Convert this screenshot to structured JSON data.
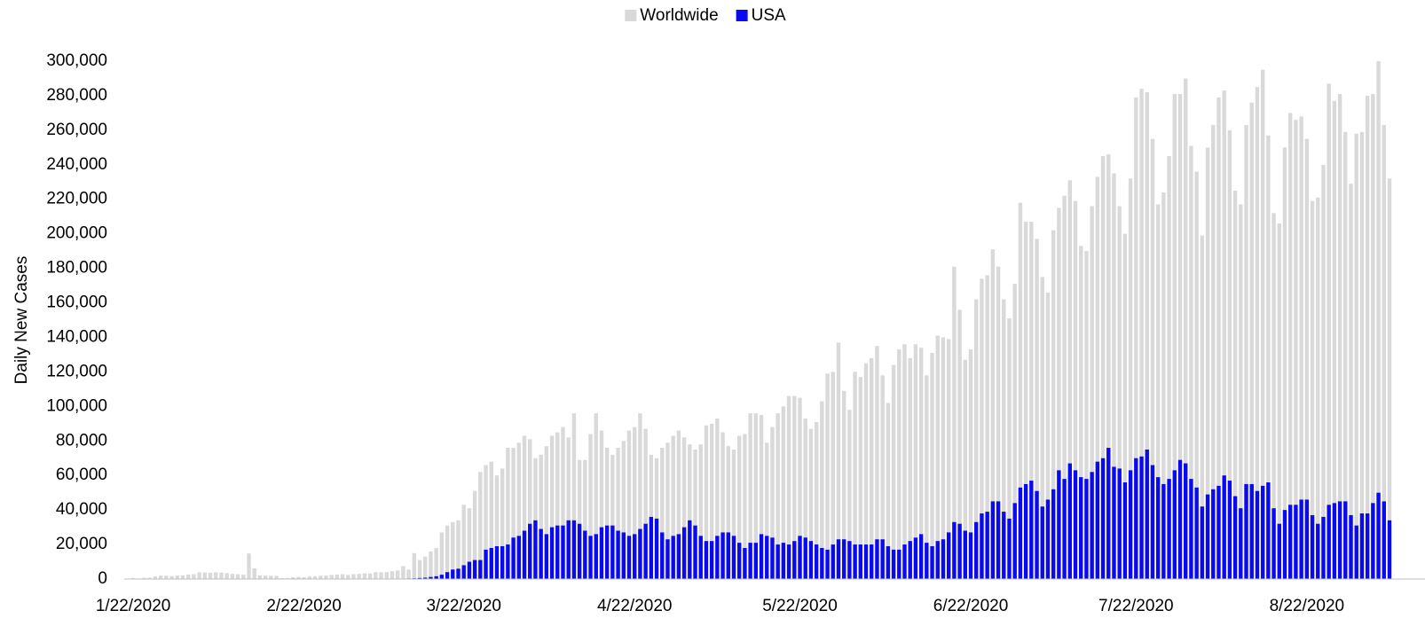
{
  "chart_data": {
    "type": "bar",
    "y_label": "Daily New Cases",
    "categories": [
      "1/22/2020",
      null,
      null,
      null,
      null,
      null,
      null,
      null,
      null,
      null,
      null,
      null,
      null,
      null,
      null,
      null,
      null,
      null,
      null,
      null,
      null,
      null,
      null,
      null,
      null,
      null,
      null,
      null,
      null,
      null,
      null,
      "2/22/2020",
      null,
      null,
      null,
      null,
      null,
      null,
      null,
      null,
      null,
      null,
      null,
      null,
      null,
      null,
      null,
      null,
      null,
      null,
      null,
      null,
      null,
      null,
      null,
      null,
      null,
      null,
      null,
      null,
      "3/22/2020",
      null,
      null,
      null,
      null,
      null,
      null,
      null,
      null,
      null,
      null,
      null,
      null,
      null,
      null,
      null,
      null,
      null,
      null,
      null,
      null,
      null,
      null,
      null,
      null,
      null,
      null,
      null,
      null,
      null,
      null,
      "4/22/2020",
      null,
      null,
      null,
      null,
      null,
      null,
      null,
      null,
      null,
      null,
      null,
      null,
      null,
      null,
      null,
      null,
      null,
      null,
      null,
      null,
      null,
      null,
      null,
      null,
      null,
      null,
      null,
      null,
      null,
      "5/22/2020",
      null,
      null,
      null,
      null,
      null,
      null,
      null,
      null,
      null,
      null,
      null,
      null,
      null,
      null,
      null,
      null,
      null,
      null,
      null,
      null,
      null,
      null,
      null,
      null,
      null,
      null,
      null,
      null,
      null,
      null,
      "6/22/2020",
      null,
      null,
      null,
      null,
      null,
      null,
      null,
      null,
      null,
      null,
      null,
      null,
      null,
      null,
      null,
      null,
      null,
      null,
      null,
      null,
      null,
      null,
      null,
      null,
      null,
      null,
      null,
      null,
      null,
      "7/22/2020",
      null,
      null,
      null,
      null,
      null,
      null,
      null,
      null,
      null,
      null,
      null,
      null,
      null,
      null,
      null,
      null,
      null,
      null,
      null,
      null,
      null,
      null,
      null,
      null,
      null,
      null,
      null,
      null,
      null,
      null,
      "8/22/2020",
      null,
      null,
      null,
      null,
      null,
      null,
      null,
      null,
      null,
      null,
      null,
      null,
      null,
      null,
      null
    ],
    "series": [
      {
        "name": "Worldwide",
        "color": "#d9d9d9",
        "values": [
          600,
          100,
          700,
          800,
          1500,
          2000,
          2000,
          1700,
          2000,
          2100,
          2600,
          2800,
          3900,
          3800,
          3700,
          3900,
          3700,
          3400,
          3000,
          2800,
          2600,
          14800,
          6200,
          2100,
          2000,
          1900,
          1800,
          500,
          600,
          1000,
          1200,
          1000,
          1500,
          1600,
          1900,
          2000,
          2400,
          2600,
          2800,
          2400,
          2800,
          3000,
          3300,
          3200,
          4000,
          3900,
          4000,
          4500,
          5000,
          7500,
          5500,
          15000,
          11000,
          13000,
          16000,
          18000,
          27000,
          31000,
          33000,
          34000,
          43000,
          41000,
          51000,
          62000,
          66000,
          68000,
          60000,
          64000,
          76000,
          76000,
          79000,
          83000,
          81000,
          70000,
          72000,
          77000,
          83000,
          85000,
          88000,
          82000,
          96000,
          69000,
          69000,
          84000,
          96000,
          86000,
          76000,
          72000,
          76000,
          80000,
          86000,
          88000,
          96000,
          87000,
          72000,
          70000,
          76000,
          79000,
          83000,
          86000,
          82000,
          78000,
          75000,
          78000,
          89000,
          90000,
          93000,
          85000,
          77000,
          75000,
          83000,
          84000,
          96000,
          96000,
          95000,
          79000,
          88000,
          96000,
          100000,
          106000,
          106000,
          105000,
          93000,
          87000,
          91000,
          103000,
          119000,
          120000,
          137000,
          109000,
          98000,
          120000,
          117000,
          125000,
          128000,
          135000,
          118000,
          102000,
          124000,
          133000,
          136000,
          128000,
          136000,
          134000,
          118000,
          131000,
          141000,
          140000,
          139000,
          181000,
          156000,
          127000,
          133000,
          162000,
          174000,
          176000,
          191000,
          181000,
          162000,
          151000,
          171000,
          218000,
          207000,
          207000,
          197000,
          175000,
          166000,
          202000,
          215000,
          222000,
          231000,
          219000,
          193000,
          190000,
          216000,
          233000,
          245000,
          246000,
          235000,
          216000,
          200000,
          232000,
          279000,
          284000,
          282000,
          255000,
          217000,
          224000,
          245000,
          281000,
          281000,
          290000,
          251000,
          236000,
          199000,
          250000,
          263000,
          279000,
          283000,
          260000,
          225000,
          217000,
          263000,
          276000,
          285000,
          295000,
          257000,
          212000,
          206000,
          250000,
          270000,
          266000,
          268000,
          255000,
          219000,
          221000,
          240000,
          287000,
          277000,
          281000,
          259000,
          229000,
          258000,
          259000,
          280000,
          281000,
          300000,
          263000,
          232000
        ]
      },
      {
        "name": "USA",
        "color": "#0a0af0",
        "values": [
          0,
          0,
          0,
          0,
          0,
          0,
          0,
          0,
          0,
          0,
          0,
          0,
          0,
          0,
          0,
          0,
          0,
          0,
          0,
          0,
          0,
          0,
          0,
          0,
          0,
          0,
          0,
          0,
          0,
          0,
          0,
          0,
          0,
          0,
          0,
          0,
          0,
          0,
          0,
          0,
          0,
          0,
          0,
          0,
          0,
          0,
          0,
          0,
          0,
          0,
          300,
          400,
          600,
          800,
          1200,
          1600,
          2500,
          4000,
          5500,
          6000,
          8000,
          10000,
          11000,
          11000,
          17000,
          18000,
          19000,
          19000,
          20000,
          24000,
          25000,
          28000,
          32000,
          34000,
          29000,
          26000,
          30000,
          31000,
          31000,
          34000,
          34000,
          32000,
          28000,
          25000,
          26000,
          30000,
          31000,
          31000,
          28000,
          27000,
          25000,
          26000,
          29000,
          32000,
          36000,
          35000,
          27000,
          23000,
          25000,
          26000,
          30000,
          34000,
          31000,
          25000,
          22000,
          22000,
          25000,
          27000,
          27000,
          25000,
          21000,
          18000,
          21000,
          21000,
          26000,
          25000,
          24000,
          20000,
          21000,
          20000,
          22000,
          25000,
          24000,
          22000,
          20000,
          18000,
          17000,
          20000,
          23000,
          23000,
          22000,
          20000,
          20000,
          20000,
          20000,
          23000,
          23000,
          19000,
          17000,
          17000,
          20000,
          22000,
          24000,
          26000,
          21000,
          19000,
          22000,
          23000,
          27000,
          33000,
          32000,
          28000,
          27000,
          33000,
          38000,
          39000,
          45000,
          45000,
          39000,
          35000,
          44000,
          53000,
          55000,
          57000,
          51000,
          42000,
          46000,
          52000,
          63000,
          58000,
          67000,
          63000,
          59000,
          58000,
          62000,
          68000,
          70000,
          76000,
          65000,
          64000,
          56000,
          63000,
          70000,
          71000,
          75000,
          66000,
          59000,
          55000,
          58000,
          63000,
          69000,
          67000,
          58000,
          53000,
          42000,
          49000,
          52000,
          54000,
          60000,
          57000,
          48000,
          41000,
          55000,
          55000,
          51000,
          54000,
          56000,
          41000,
          32000,
          40000,
          43000,
          43000,
          46000,
          46000,
          37000,
          32000,
          36000,
          43000,
          44000,
          45000,
          45000,
          37000,
          31000,
          38000,
          38000,
          44000,
          50000,
          45000,
          34000
        ]
      }
    ],
    "ylim": [
      0,
      300000
    ],
    "yticks": [
      0,
      {
        "value": 20000,
        "label": "20,000"
      },
      {
        "value": 40000,
        "label": "40,000"
      },
      {
        "value": 60000,
        "label": "60,000"
      },
      {
        "value": 80000,
        "label": "80,000"
      },
      {
        "value": 100000,
        "label": "100,000"
      },
      {
        "value": 120000,
        "label": "120,000"
      },
      {
        "value": 140000,
        "label": "140,000"
      },
      {
        "value": 160000,
        "label": "160,000"
      },
      {
        "value": 180000,
        "label": "180,000"
      },
      {
        "value": 200000,
        "label": "200,000"
      },
      {
        "value": 220000,
        "label": "220,000"
      },
      {
        "value": 240000,
        "label": "240,000"
      },
      {
        "value": 260000,
        "label": "260,000"
      },
      {
        "value": 280000,
        "label": "280,000"
      },
      {
        "value": 300000,
        "label": "300,000"
      }
    ],
    "legend": "top"
  }
}
